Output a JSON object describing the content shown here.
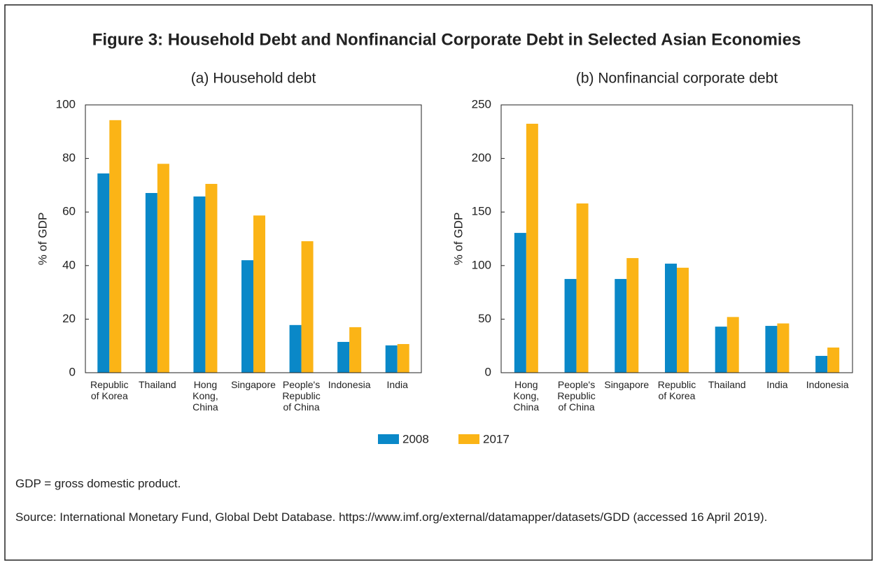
{
  "title": "Figure 3: Household Debt and Nonfinancial Corporate Debt in Selected Asian Economies",
  "chart_data": [
    {
      "type": "bar",
      "title": "(a) Household debt",
      "ylabel": "% of GDP",
      "categories": [
        "Republic of Korea",
        "Thailand",
        "Hong Kong, China",
        "Singapore",
        "People's Republic of China",
        "Indonesia",
        "India"
      ],
      "series": [
        {
          "name": "2008",
          "color": "#0a88c8",
          "values": [
            74.4,
            67.1,
            65.8,
            42,
            17.8,
            11.5,
            10.2
          ]
        },
        {
          "name": "2017",
          "color": "#fbb416",
          "values": [
            94.3,
            78,
            70.5,
            58.7,
            49.1,
            17,
            10.7
          ]
        }
      ],
      "ylim": [
        0,
        100
      ],
      "yticks": [
        0,
        20,
        40,
        60,
        80,
        100
      ],
      "grid": false
    },
    {
      "type": "bar",
      "title": "(b) Nonfinancial corporate debt",
      "ylabel": "% of GDP",
      "categories": [
        "Hong Kong, China",
        "People's Republic of China",
        "Singapore",
        "Republic of Korea",
        "Thailand",
        "India",
        "Indonesia"
      ],
      "series": [
        {
          "name": "2008",
          "color": "#0a88c8",
          "values": [
            130.5,
            87.5,
            87.5,
            101.8,
            43,
            43.7,
            15.7
          ]
        },
        {
          "name": "2017",
          "color": "#fbb416",
          "values": [
            232.4,
            158,
            107,
            98,
            52,
            46,
            23.5
          ]
        }
      ],
      "ylim": [
        0,
        250
      ],
      "yticks": [
        0,
        50,
        100,
        150,
        200,
        250
      ],
      "grid": false
    }
  ],
  "notes": [
    "GDP = gross domestic product.",
    "Source: International Monetary Fund, Global Debt Database. https://www.imf.org/external/datamapper/datasets/GDD (accessed 16 April 2019)."
  ]
}
